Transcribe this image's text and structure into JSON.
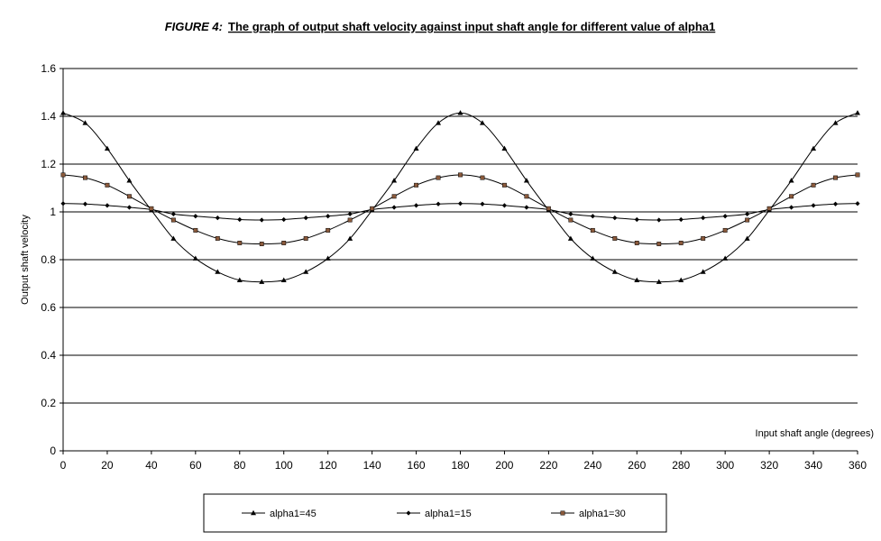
{
  "chart_data": {
    "type": "line",
    "title_prefix": "FIGURE 4:",
    "title": "The graph of output shaft velocity against  input shaft angle for different value of alpha1",
    "xlabel": "Input shaft angle (degrees)",
    "ylabel": "Output shaft velocity",
    "xlim": [
      0,
      360
    ],
    "ylim": [
      0,
      1.6
    ],
    "xticks": [
      0,
      20,
      40,
      60,
      80,
      100,
      120,
      140,
      160,
      180,
      200,
      220,
      240,
      260,
      280,
      300,
      320,
      340,
      360
    ],
    "xtick_labels": [
      "0",
      "20",
      "40",
      "60",
      "80",
      "100",
      "120",
      "140",
      "160",
      "180",
      "200",
      "220",
      "240",
      "260",
      "280",
      "300",
      "320",
      "340",
      "360"
    ],
    "yticks": [
      0,
      0.2,
      0.4,
      0.6,
      0.8,
      1.0,
      1.2,
      1.4,
      1.6
    ],
    "ytick_labels": [
      "0",
      "0.2",
      "0.4",
      "0.6",
      "0.8",
      "1",
      "1.2",
      "1.4",
      "1.6"
    ],
    "grid": "horizontal",
    "legend_position": "bottom",
    "x": [
      0,
      10,
      20,
      30,
      40,
      50,
      60,
      70,
      80,
      90,
      100,
      110,
      120,
      130,
      140,
      150,
      160,
      170,
      180,
      190,
      200,
      210,
      220,
      230,
      240,
      250,
      260,
      270,
      280,
      290,
      300,
      310,
      320,
      330,
      340,
      350,
      360
    ],
    "series": [
      {
        "name": "alpha1=45",
        "marker": "triangle",
        "values": [
          1.414,
          1.372,
          1.265,
          1.131,
          1.007,
          0.888,
          0.805,
          0.749,
          0.714,
          0.707,
          0.714,
          0.749,
          0.805,
          0.888,
          1.007,
          1.131,
          1.265,
          1.372,
          1.414,
          1.372,
          1.265,
          1.131,
          1.007,
          0.888,
          0.805,
          0.749,
          0.714,
          0.707,
          0.714,
          0.749,
          0.805,
          0.888,
          1.007,
          1.131,
          1.265,
          1.372,
          1.414
        ]
      },
      {
        "name": "alpha1=15",
        "marker": "diamond",
        "values": [
          1.035,
          1.033,
          1.027,
          1.019,
          1.01,
          0.991,
          0.982,
          0.975,
          0.968,
          0.966,
          0.968,
          0.975,
          0.982,
          0.991,
          1.01,
          1.019,
          1.027,
          1.033,
          1.035,
          1.033,
          1.027,
          1.019,
          1.01,
          0.991,
          0.982,
          0.975,
          0.968,
          0.966,
          0.968,
          0.975,
          0.982,
          0.991,
          1.01,
          1.019,
          1.027,
          1.033,
          1.035
        ]
      },
      {
        "name": "alpha1=30",
        "marker": "square",
        "values": [
          1.155,
          1.143,
          1.112,
          1.065,
          1.014,
          0.966,
          0.923,
          0.889,
          0.87,
          0.866,
          0.87,
          0.889,
          0.923,
          0.966,
          1.014,
          1.065,
          1.112,
          1.143,
          1.155,
          1.143,
          1.112,
          1.065,
          1.014,
          0.966,
          0.923,
          0.889,
          0.87,
          0.866,
          0.87,
          0.889,
          0.923,
          0.966,
          1.014,
          1.065,
          1.112,
          1.143,
          1.155
        ]
      }
    ],
    "colors": {
      "line": "#000000",
      "square_marker": "#8b5a3c",
      "grid": "#000000"
    }
  }
}
